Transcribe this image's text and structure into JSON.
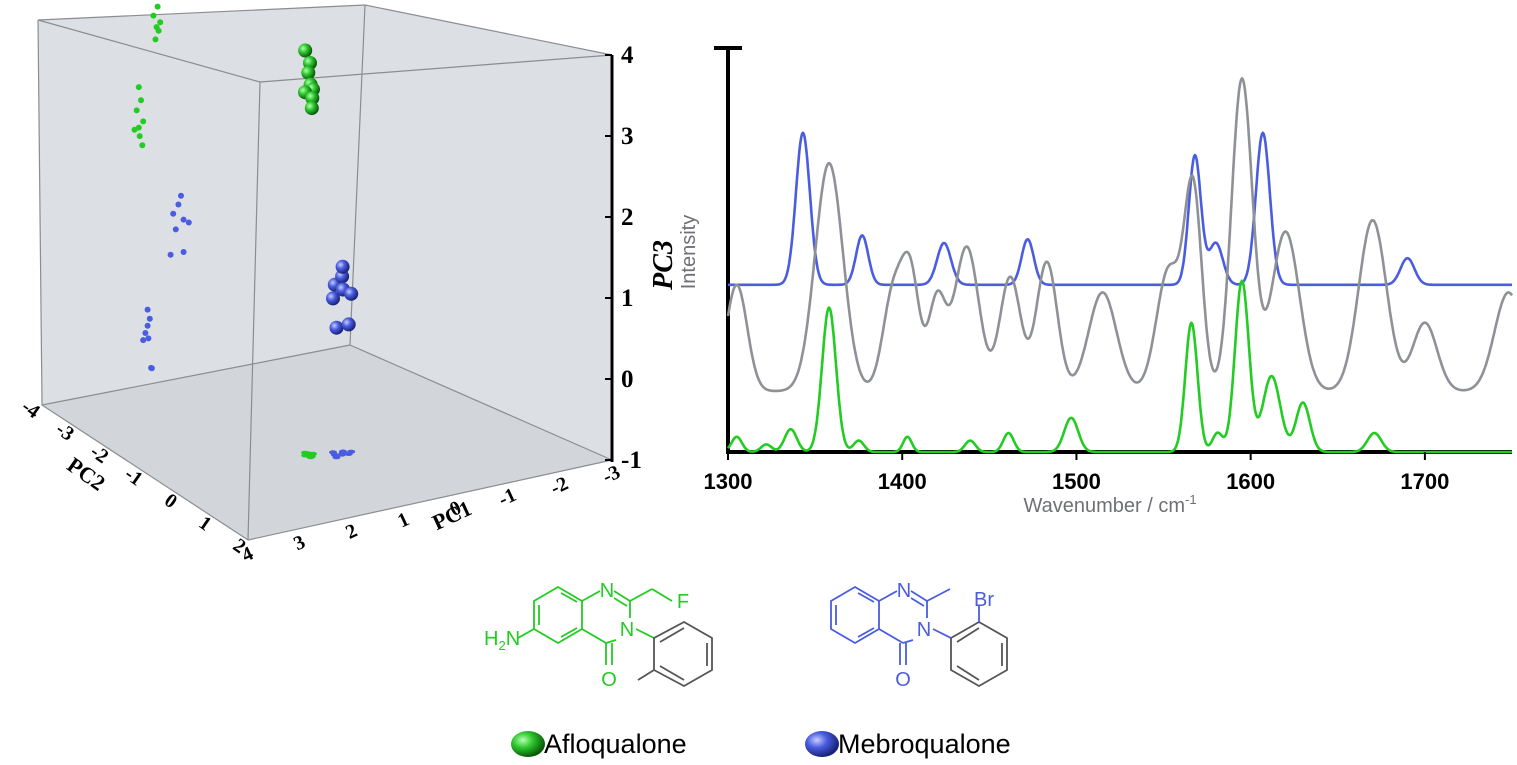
{
  "chart_data": [
    {
      "type": "scatter",
      "projection": "3d",
      "axes": {
        "pc1": {
          "label": "PC1",
          "range": [
            -3,
            4
          ],
          "ticks": [
            "-3",
            "-2",
            "-1",
            "0",
            "1",
            "2",
            "3",
            "4"
          ]
        },
        "pc2": {
          "label": "PC2",
          "range": [
            -4,
            2
          ],
          "ticks": [
            "-4",
            "-3",
            "-2",
            "-1",
            "0",
            "1",
            "2"
          ]
        },
        "pc3": {
          "label": "PC3",
          "range": [
            -1,
            4
          ],
          "ticks": [
            "-1",
            "0",
            "1",
            "2",
            "3",
            "4"
          ]
        }
      },
      "grid": false,
      "background": "#dcdfe3",
      "series": [
        {
          "name": "Afloqualone",
          "color": "#22cc22",
          "points": [
            [
              0.2,
              -0.5,
              4.0
            ],
            [
              0.25,
              -0.45,
              3.85
            ],
            [
              0.3,
              -0.55,
              3.7
            ],
            [
              0.22,
              -0.4,
              3.6
            ],
            [
              0.35,
              -0.5,
              3.5
            ],
            [
              0.28,
              -0.6,
              3.45
            ],
            [
              0.32,
              -0.48,
              3.4
            ],
            [
              0.26,
              -0.42,
              3.3
            ]
          ]
        },
        {
          "name": "Mebroqualone",
          "color": "#4a5de0",
          "points": [
            [
              0.6,
              -0.3,
              1.1
            ],
            [
              0.7,
              -0.25,
              1.2
            ],
            [
              0.8,
              -0.35,
              1.0
            ],
            [
              0.65,
              -0.4,
              0.9
            ],
            [
              0.75,
              -0.3,
              1.3
            ],
            [
              0.9,
              -0.28,
              0.95
            ],
            [
              0.55,
              -0.2,
              0.6
            ],
            [
              0.8,
              -0.22,
              0.6
            ]
          ]
        }
      ]
    },
    {
      "type": "line",
      "xlabel": "Wavenumber / cm",
      "xlabel_sup": "-1",
      "ylabel": "Intensity",
      "xlim": [
        1300,
        1750
      ],
      "xticks": [
        1300,
        1400,
        1500,
        1600,
        1700
      ],
      "series": [
        {
          "color": "#4a5de0",
          "baseline": 0.44,
          "peaks": [
            [
              1343,
              0.4,
              4
            ],
            [
              1377,
              0.13,
              3.5
            ],
            [
              1424,
              0.11,
              4
            ],
            [
              1472,
              0.12,
              3.5
            ],
            [
              1568,
              0.34,
              3.5
            ],
            [
              1580,
              0.11,
              4
            ],
            [
              1607,
              0.4,
              4
            ],
            [
              1690,
              0.07,
              4
            ]
          ]
        },
        {
          "color": "#8e9196",
          "baseline": 0.16,
          "peaks": [
            [
              1305,
              0.28,
              6
            ],
            [
              1358,
              0.6,
              8
            ],
            [
              1395,
              0.26,
              6
            ],
            [
              1405,
              0.28,
              5
            ],
            [
              1420,
              0.24,
              5
            ],
            [
              1437,
              0.38,
              7
            ],
            [
              1462,
              0.3,
              6
            ],
            [
              1483,
              0.34,
              6
            ],
            [
              1515,
              0.26,
              8
            ],
            [
              1553,
              0.32,
              7
            ],
            [
              1567,
              0.52,
              5
            ],
            [
              1595,
              0.82,
              6
            ],
            [
              1620,
              0.42,
              8
            ],
            [
              1670,
              0.45,
              8
            ],
            [
              1700,
              0.18,
              7
            ],
            [
              1748,
              0.26,
              8
            ]
          ]
        },
        {
          "color": "#22cc22",
          "baseline": 0.0,
          "peaks": [
            [
              1305,
              0.04,
              3
            ],
            [
              1322,
              0.02,
              3
            ],
            [
              1336,
              0.06,
              3.5
            ],
            [
              1358,
              0.38,
              4
            ],
            [
              1375,
              0.03,
              3
            ],
            [
              1403,
              0.04,
              2.5
            ],
            [
              1439,
              0.03,
              3
            ],
            [
              1461,
              0.05,
              3
            ],
            [
              1497,
              0.09,
              4
            ],
            [
              1566,
              0.34,
              3.5
            ],
            [
              1581,
              0.05,
              3
            ],
            [
              1595,
              0.45,
              4
            ],
            [
              1612,
              0.2,
              5
            ],
            [
              1630,
              0.13,
              4
            ],
            [
              1671,
              0.05,
              4
            ]
          ]
        }
      ]
    }
  ],
  "molecules": {
    "afloqualone": {
      "color": "#22cc22",
      "labels": {
        "n1": "N",
        "n3": "N",
        "f": "F",
        "o": "O",
        "nh2_main": "H",
        "nh2_sub": "2",
        "nh2_tail": "N"
      }
    },
    "mebroqualone": {
      "color": "#4a5de0",
      "labels": {
        "n1": "N",
        "n3": "N",
        "br": "Br",
        "o": "O"
      }
    }
  },
  "legend": {
    "items": [
      {
        "label": "Afloqualone",
        "color": "#22cc22"
      },
      {
        "label": "Mebroqualone",
        "color": "#4a5de0"
      }
    ]
  }
}
